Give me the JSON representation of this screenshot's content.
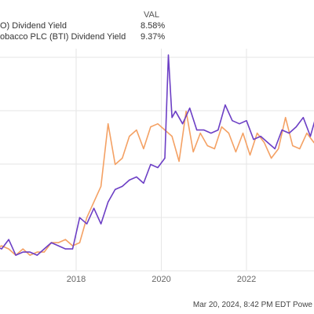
{
  "chart_data": {
    "type": "line",
    "title": "",
    "xlabel": "",
    "ylabel": "",
    "legend": {
      "placement": "top-left",
      "header": "VAL",
      "entries": [
        {
          "label": "O) Dividend Yield",
          "value": "8.58%",
          "color": "#6c3fc5"
        },
        {
          "label": "obacco PLC (BTI) Dividend Yield",
          "value": "9.37%",
          "color": "#f4a164"
        }
      ]
    },
    "x_ticks": [
      "2018",
      "2020",
      "2022"
    ],
    "x_range": [
      "2015-10",
      "2024-03"
    ],
    "y_range": [
      3.5,
      10.6
    ],
    "grid": {
      "vertical": true,
      "horizontal": true
    },
    "series": [
      {
        "name": "O) Dividend Yield",
        "color": "#6c3fc5",
        "x": [
          "2015-12",
          "2016-02",
          "2016-04",
          "2016-06",
          "2016-08",
          "2016-10",
          "2016-12",
          "2017-02",
          "2017-04",
          "2017-06",
          "2017-08",
          "2017-10",
          "2017-12",
          "2018-02",
          "2018-04",
          "2018-06",
          "2018-08",
          "2018-10",
          "2018-12",
          "2019-02",
          "2019-04",
          "2019-06",
          "2019-08",
          "2019-10",
          "2019-12",
          "2020-02",
          "2020-03",
          "2020-04",
          "2020-05",
          "2020-07",
          "2020-09",
          "2020-11",
          "2021-01",
          "2021-03",
          "2021-05",
          "2021-07",
          "2021-09",
          "2021-11",
          "2022-01",
          "2022-03",
          "2022-05",
          "2022-07",
          "2022-09",
          "2022-11",
          "2023-01",
          "2023-03",
          "2023-05",
          "2023-07",
          "2023-09",
          "2023-11",
          "2024-01",
          "2024-03"
        ],
        "values": [
          4.0,
          4.3,
          4.2,
          4.5,
          4.0,
          4.1,
          4.1,
          4.0,
          4.2,
          4.4,
          4.3,
          4.2,
          4.2,
          5.2,
          5.0,
          5.5,
          5.0,
          5.7,
          6.1,
          6.2,
          6.4,
          6.5,
          6.3,
          6.9,
          6.8,
          7.1,
          10.4,
          8.4,
          8.6,
          8.2,
          8.7,
          8.0,
          8.0,
          7.9,
          8.0,
          8.8,
          8.3,
          8.2,
          8.3,
          7.7,
          7.8,
          7.6,
          7.4,
          8.0,
          7.9,
          8.1,
          8.4,
          7.8,
          8.6,
          8.1,
          8.5,
          8.58
        ]
      },
      {
        "name": "obacco PLC (BTI) Dividend Yield",
        "color": "#f4a164",
        "x": [
          "2015-12",
          "2016-02",
          "2016-04",
          "2016-06",
          "2016-08",
          "2016-10",
          "2016-12",
          "2017-02",
          "2017-04",
          "2017-06",
          "2017-08",
          "2017-10",
          "2017-12",
          "2018-02",
          "2018-04",
          "2018-06",
          "2018-08",
          "2018-10",
          "2018-12",
          "2019-02",
          "2019-04",
          "2019-06",
          "2019-08",
          "2019-10",
          "2019-12",
          "2020-02",
          "2020-04",
          "2020-06",
          "2020-08",
          "2020-10",
          "2020-12",
          "2021-02",
          "2021-04",
          "2021-06",
          "2021-08",
          "2021-10",
          "2021-12",
          "2022-02",
          "2022-04",
          "2022-06",
          "2022-08",
          "2022-10",
          "2022-12",
          "2023-02",
          "2023-04",
          "2023-06",
          "2023-08",
          "2023-10",
          "2023-12",
          "2024-03"
        ],
        "values": [
          4.4,
          4.2,
          4.3,
          4.2,
          4.0,
          4.2,
          4.0,
          4.1,
          4.1,
          4.4,
          4.4,
          4.5,
          4.3,
          4.4,
          5.2,
          5.7,
          6.2,
          8.2,
          6.9,
          7.1,
          7.8,
          8.0,
          7.4,
          8.1,
          8.2,
          8.0,
          7.8,
          7.0,
          8.6,
          7.3,
          7.9,
          7.5,
          7.4,
          8.1,
          7.9,
          7.3,
          7.9,
          7.2,
          7.9,
          7.6,
          7.1,
          7.4,
          8.4,
          7.5,
          7.4,
          7.9,
          7.6,
          8.0,
          8.3,
          9.37
        ]
      }
    ]
  },
  "footer": {
    "timestamp": "Mar 20, 2024, 8:42 PM EDT Powe"
  }
}
